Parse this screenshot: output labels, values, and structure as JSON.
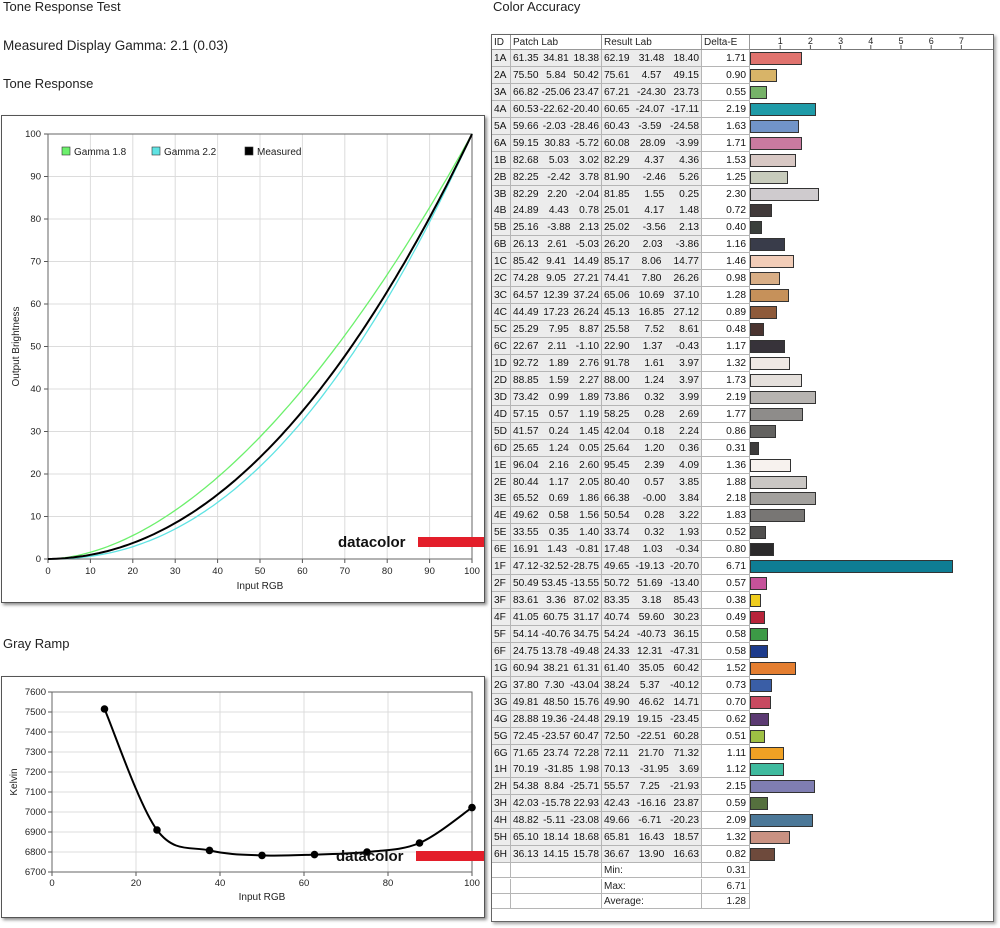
{
  "headings": {
    "tone_response_test": "Tone Response Test",
    "gamma_line": "Measured Display Gamma: 2.1 (0.03)",
    "tone_response": "Tone Response",
    "gray_ramp": "Gray Ramp",
    "color_accuracy": "Color Accuracy"
  },
  "logo_text": "datacolor",
  "colors": {
    "gamma18": "#6cf06c",
    "gamma22": "#5fe3e3",
    "measured": "#000000",
    "logo_red": "#e31e2a"
  },
  "chart_data": [
    {
      "type": "line",
      "title": "Tone Response",
      "xlabel": "Input RGB",
      "ylabel": "Output Brightness",
      "xlim": [
        0,
        100
      ],
      "ylim": [
        0,
        100
      ],
      "xticks": [
        0,
        10,
        20,
        30,
        40,
        50,
        60,
        70,
        80,
        90,
        100
      ],
      "yticks": [
        0,
        10,
        20,
        30,
        40,
        50,
        60,
        70,
        80,
        90,
        100
      ],
      "grid": true,
      "legend": "top-left",
      "series": [
        {
          "name": "Gamma 1.8",
          "color": "#6cf06c",
          "gamma": 1.8
        },
        {
          "name": "Gamma 2.2",
          "color": "#5fe3e3",
          "gamma": 2.2
        },
        {
          "name": "Measured",
          "color": "#000000",
          "gamma": 2.1
        }
      ]
    },
    {
      "type": "line",
      "title": "Gray Ramp",
      "xlabel": "Input RGB",
      "ylabel": "Kelvin",
      "xlim": [
        0,
        100
      ],
      "ylim": [
        6700,
        7600
      ],
      "xticks": [
        0,
        20,
        40,
        60,
        80,
        100
      ],
      "yticks": [
        6700,
        6800,
        6900,
        7000,
        7100,
        7200,
        7300,
        7400,
        7500,
        7600
      ],
      "grid": true,
      "x": [
        12.5,
        25,
        37.5,
        50,
        62.5,
        75,
        87.5,
        100
      ],
      "values": [
        7515,
        6910,
        6808,
        6783,
        6787,
        6800,
        6845,
        7022
      ]
    },
    {
      "type": "table",
      "title": "Color Accuracy",
      "columns": [
        "ID",
        "Patch Lab",
        "Result Lab",
        "Delta-E"
      ],
      "scale": [
        1,
        2,
        3,
        4,
        5,
        6,
        7
      ],
      "rows": [
        {
          "id": "1A",
          "patch": [
            "61.35",
            "34.81",
            "18.38"
          ],
          "result": [
            "62.19",
            "31.48",
            "18.40"
          ],
          "de": "1.71",
          "color": "#e0736e"
        },
        {
          "id": "2A",
          "patch": [
            "75.50",
            "5.84",
            "50.42"
          ],
          "result": [
            "75.61",
            "4.57",
            "49.15"
          ],
          "de": "0.90",
          "color": "#d8b468"
        },
        {
          "id": "3A",
          "patch": [
            "66.82",
            "-25.06",
            "23.47"
          ],
          "result": [
            "67.21",
            "-24.30",
            "23.73"
          ],
          "de": "0.55",
          "color": "#76b268"
        },
        {
          "id": "4A",
          "patch": [
            "60.53",
            "-22.62",
            "-20.40"
          ],
          "result": [
            "60.65",
            "-24.07",
            "-17.11"
          ],
          "de": "2.19",
          "color": "#1f9ba8"
        },
        {
          "id": "5A",
          "patch": [
            "59.66",
            "-2.03",
            "-28.46"
          ],
          "result": [
            "60.43",
            "-3.59",
            "-24.58"
          ],
          "de": "1.63",
          "color": "#7194c8"
        },
        {
          "id": "6A",
          "patch": [
            "59.15",
            "30.83",
            "-5.72"
          ],
          "result": [
            "60.08",
            "28.09",
            "-3.99"
          ],
          "de": "1.71",
          "color": "#c97aa0"
        },
        {
          "id": "1B",
          "patch": [
            "82.68",
            "5.03",
            "3.02"
          ],
          "result": [
            "82.29",
            "4.37",
            "4.36"
          ],
          "de": "1.53",
          "color": "#d8c8c4"
        },
        {
          "id": "2B",
          "patch": [
            "82.25",
            "-2.42",
            "3.78"
          ],
          "result": [
            "81.90",
            "-2.46",
            "5.26"
          ],
          "de": "1.25",
          "color": "#c8ccbc"
        },
        {
          "id": "3B",
          "patch": [
            "82.29",
            "2.20",
            "-2.04"
          ],
          "result": [
            "81.85",
            "1.55",
            "0.25"
          ],
          "de": "2.30",
          "color": "#cfcbce"
        },
        {
          "id": "4B",
          "patch": [
            "24.89",
            "4.43",
            "0.78"
          ],
          "result": [
            "25.01",
            "4.17",
            "1.48"
          ],
          "de": "0.72",
          "color": "#413a3a"
        },
        {
          "id": "5B",
          "patch": [
            "25.16",
            "-3.88",
            "2.13"
          ],
          "result": [
            "25.02",
            "-3.56",
            "2.13"
          ],
          "de": "0.40",
          "color": "#3a3f3b"
        },
        {
          "id": "6B",
          "patch": [
            "26.13",
            "2.61",
            "-5.03"
          ],
          "result": [
            "26.20",
            "2.03",
            "-3.86"
          ],
          "de": "1.16",
          "color": "#393c4a"
        },
        {
          "id": "1C",
          "patch": [
            "85.42",
            "9.41",
            "14.49"
          ],
          "result": [
            "85.17",
            "8.06",
            "14.77"
          ],
          "de": "1.46",
          "color": "#f2cdb8"
        },
        {
          "id": "2C",
          "patch": [
            "74.28",
            "9.05",
            "27.21"
          ],
          "result": [
            "74.41",
            "7.80",
            "26.26"
          ],
          "de": "0.98",
          "color": "#d8ae86"
        },
        {
          "id": "3C",
          "patch": [
            "64.57",
            "12.39",
            "37.24"
          ],
          "result": [
            "65.06",
            "10.69",
            "37.10"
          ],
          "de": "1.28",
          "color": "#c6915a"
        },
        {
          "id": "4C",
          "patch": [
            "44.49",
            "17.23",
            "26.24"
          ],
          "result": [
            "45.13",
            "16.85",
            "27.12"
          ],
          "de": "0.89",
          "color": "#8e5a3a"
        },
        {
          "id": "5C",
          "patch": [
            "25.29",
            "7.95",
            "8.87"
          ],
          "result": [
            "25.58",
            "7.52",
            "8.61"
          ],
          "de": "0.48",
          "color": "#4a3430"
        },
        {
          "id": "6C",
          "patch": [
            "22.67",
            "2.11",
            "-1.10"
          ],
          "result": [
            "22.90",
            "1.37",
            "-0.43"
          ],
          "de": "1.17",
          "color": "#37333a"
        },
        {
          "id": "1D",
          "patch": [
            "92.72",
            "1.89",
            "2.76"
          ],
          "result": [
            "91.78",
            "1.61",
            "3.97"
          ],
          "de": "1.32",
          "color": "#efe8e4"
        },
        {
          "id": "2D",
          "patch": [
            "88.85",
            "1.59",
            "2.27"
          ],
          "result": [
            "88.00",
            "1.24",
            "3.97"
          ],
          "de": "1.73",
          "color": "#e5e0dc"
        },
        {
          "id": "3D",
          "patch": [
            "73.42",
            "0.99",
            "1.89"
          ],
          "result": [
            "73.86",
            "0.32",
            "3.99"
          ],
          "de": "2.19",
          "color": "#b7b4b1"
        },
        {
          "id": "4D",
          "patch": [
            "57.15",
            "0.57",
            "1.19"
          ],
          "result": [
            "58.25",
            "0.28",
            "2.69"
          ],
          "de": "1.77",
          "color": "#8e8c8a"
        },
        {
          "id": "5D",
          "patch": [
            "41.57",
            "0.24",
            "1.45"
          ],
          "result": [
            "42.04",
            "0.18",
            "2.24"
          ],
          "de": "0.86",
          "color": "#636260"
        },
        {
          "id": "6D",
          "patch": [
            "25.65",
            "1.24",
            "0.05"
          ],
          "result": [
            "25.64",
            "1.20",
            "0.36"
          ],
          "de": "0.31",
          "color": "#3d3c3c"
        },
        {
          "id": "1E",
          "patch": [
            "96.04",
            "2.16",
            "2.60"
          ],
          "result": [
            "95.45",
            "2.39",
            "4.09"
          ],
          "de": "1.36",
          "color": "#f7f2ee"
        },
        {
          "id": "2E",
          "patch": [
            "80.44",
            "1.17",
            "2.05"
          ],
          "result": [
            "80.40",
            "0.57",
            "3.85"
          ],
          "de": "1.88",
          "color": "#cac7c4"
        },
        {
          "id": "3E",
          "patch": [
            "65.52",
            "0.69",
            "1.86"
          ],
          "result": [
            "66.38",
            "-0.00",
            "3.84"
          ],
          "de": "2.18",
          "color": "#a3a19e"
        },
        {
          "id": "4E",
          "patch": [
            "49.62",
            "0.58",
            "1.56"
          ],
          "result": [
            "50.54",
            "0.28",
            "3.22"
          ],
          "de": "1.83",
          "color": "#787674"
        },
        {
          "id": "5E",
          "patch": [
            "33.55",
            "0.35",
            "1.40"
          ],
          "result": [
            "33.74",
            "0.32",
            "1.93"
          ],
          "de": "0.52",
          "color": "#504f4e"
        },
        {
          "id": "6E",
          "patch": [
            "16.91",
            "1.43",
            "-0.81"
          ],
          "result": [
            "17.48",
            "1.03",
            "-0.34"
          ],
          "de": "0.80",
          "color": "#2b2a2b"
        },
        {
          "id": "1F",
          "patch": [
            "47.12",
            "-32.52",
            "-28.75"
          ],
          "result": [
            "49.65",
            "-19.13",
            "-20.70"
          ],
          "de": "6.71",
          "color": "#0e7d94"
        },
        {
          "id": "2F",
          "patch": [
            "50.49",
            "53.45",
            "-13.55"
          ],
          "result": [
            "50.72",
            "51.69",
            "-13.40"
          ],
          "de": "0.57",
          "color": "#c5529a"
        },
        {
          "id": "3F",
          "patch": [
            "83.61",
            "3.36",
            "87.02"
          ],
          "result": [
            "83.35",
            "3.18",
            "85.43"
          ],
          "de": "0.38",
          "color": "#f0cd1e"
        },
        {
          "id": "4F",
          "patch": [
            "41.05",
            "60.75",
            "31.17"
          ],
          "result": [
            "40.74",
            "59.60",
            "30.23"
          ],
          "de": "0.49",
          "color": "#b8243a"
        },
        {
          "id": "5F",
          "patch": [
            "54.14",
            "-40.76",
            "34.75"
          ],
          "result": [
            "54.24",
            "-40.73",
            "36.15"
          ],
          "de": "0.58",
          "color": "#3c9a46"
        },
        {
          "id": "6F",
          "patch": [
            "24.75",
            "13.78",
            "-49.48"
          ],
          "result": [
            "24.33",
            "12.31",
            "-47.31"
          ],
          "de": "0.58",
          "color": "#1d3b8c"
        },
        {
          "id": "1G",
          "patch": [
            "60.94",
            "38.21",
            "61.31"
          ],
          "result": [
            "61.40",
            "35.05",
            "60.42"
          ],
          "de": "1.52",
          "color": "#e47e30"
        },
        {
          "id": "2G",
          "patch": [
            "37.80",
            "7.30",
            "-43.04"
          ],
          "result": [
            "38.24",
            "5.37",
            "-40.12"
          ],
          "de": "0.73",
          "color": "#3a5ea6"
        },
        {
          "id": "3G",
          "patch": [
            "49.81",
            "48.50",
            "15.76"
          ],
          "result": [
            "49.90",
            "46.62",
            "14.71"
          ],
          "de": "0.70",
          "color": "#c84a60"
        },
        {
          "id": "4G",
          "patch": [
            "28.88",
            "19.36",
            "-24.48"
          ],
          "result": [
            "29.19",
            "19.15",
            "-23.45"
          ],
          "de": "0.62",
          "color": "#5b3a72"
        },
        {
          "id": "5G",
          "patch": [
            "72.45",
            "-23.57",
            "60.47"
          ],
          "result": [
            "72.50",
            "-22.51",
            "60.28"
          ],
          "de": "0.51",
          "color": "#9ec044"
        },
        {
          "id": "6G",
          "patch": [
            "71.65",
            "23.74",
            "72.28"
          ],
          "result": [
            "72.11",
            "21.70",
            "71.32"
          ],
          "de": "1.11",
          "color": "#f0a124"
        },
        {
          "id": "1H",
          "patch": [
            "70.19",
            "-31.85",
            "1.98"
          ],
          "result": [
            "70.13",
            "-31.95",
            "3.69"
          ],
          "de": "1.12",
          "color": "#3fba9e"
        },
        {
          "id": "2H",
          "patch": [
            "54.38",
            "8.84",
            "-25.71"
          ],
          "result": [
            "55.57",
            "7.25",
            "-21.93"
          ],
          "de": "2.15",
          "color": "#7f7eb2"
        },
        {
          "id": "3H",
          "patch": [
            "42.03",
            "-15.78",
            "22.93"
          ],
          "result": [
            "42.43",
            "-16.16",
            "23.87"
          ],
          "de": "0.59",
          "color": "#55703e"
        },
        {
          "id": "4H",
          "patch": [
            "48.82",
            "-5.11",
            "-23.08"
          ],
          "result": [
            "49.66",
            "-6.71",
            "-20.23"
          ],
          "de": "2.09",
          "color": "#4c7898"
        },
        {
          "id": "5H",
          "patch": [
            "65.10",
            "18.14",
            "18.68"
          ],
          "result": [
            "65.81",
            "16.43",
            "18.57"
          ],
          "de": "1.32",
          "color": "#c99282"
        },
        {
          "id": "6H",
          "patch": [
            "36.13",
            "14.15",
            "15.78"
          ],
          "result": [
            "36.67",
            "13.90",
            "16.63"
          ],
          "de": "0.82",
          "color": "#6e4a3c"
        }
      ],
      "summary": [
        {
          "label": "Min:",
          "value": "0.31"
        },
        {
          "label": "Max:",
          "value": "6.71"
        },
        {
          "label": "Average:",
          "value": "1.28"
        }
      ]
    }
  ]
}
